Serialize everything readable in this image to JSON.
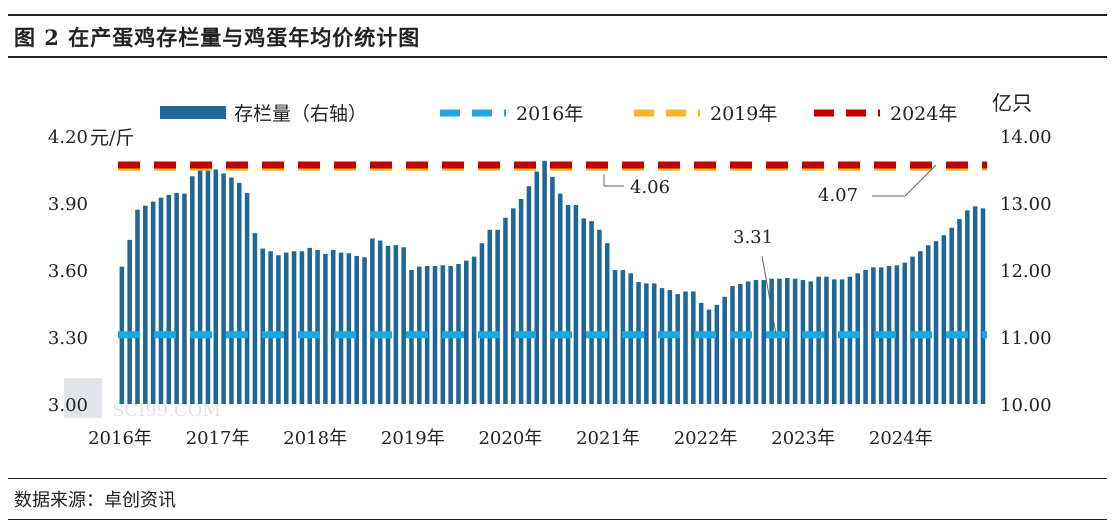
{
  "figure": {
    "title": "图 2 在产蛋鸡存栏量与鸡蛋年均价统计图",
    "source": "数据来源：卓创资讯",
    "watermark": "SCI99.COM"
  },
  "chart_data": {
    "type": "bar",
    "title": "",
    "x_tick_labels": [
      "2016年",
      "2017年",
      "2018年",
      "2019年",
      "2020年",
      "2021年",
      "2022年",
      "2023年",
      "2024年"
    ],
    "y_left": {
      "unit": "元/斤",
      "min": 3.0,
      "max": 4.2,
      "ticks": [
        "3.00",
        "3.30",
        "3.60",
        "3.90",
        "4.20"
      ]
    },
    "y_right": {
      "unit": "亿只",
      "min": 10.0,
      "max": 14.0,
      "ticks": [
        "10.00",
        "11.00",
        "12.00",
        "13.00",
        "14.00"
      ]
    },
    "legend": {
      "placement": "top",
      "items": [
        {
          "label": "存栏量（右轴）",
          "color": "#1f6796",
          "style": "bar"
        },
        {
          "label": "2016年",
          "color": "#1ba8e0",
          "style": "dash"
        },
        {
          "label": "2019年",
          "color": "#f4b81c",
          "style": "dash"
        },
        {
          "label": "2024年",
          "color": "#c00000",
          "style": "dash"
        }
      ]
    },
    "series": [
      {
        "name": "存栏量（右轴）",
        "axis": "right",
        "color": "#1f6796",
        "values": [
          12.05,
          12.45,
          12.9,
          12.96,
          13.02,
          13.08,
          13.12,
          13.15,
          13.14,
          13.4,
          13.5,
          13.53,
          13.5,
          13.44,
          13.38,
          13.3,
          13.15,
          12.55,
          12.32,
          12.28,
          12.22,
          12.26,
          12.28,
          12.28,
          12.33,
          12.3,
          12.24,
          12.3,
          12.26,
          12.25,
          12.21,
          12.19,
          12.47,
          12.44,
          12.36,
          12.37,
          12.34,
          12.0,
          12.05,
          12.06,
          12.06,
          12.07,
          12.06,
          12.09,
          12.14,
          12.2,
          12.4,
          12.6,
          12.6,
          12.78,
          12.92,
          13.06,
          13.25,
          13.47,
          13.63,
          13.39,
          13.14,
          12.97,
          12.97,
          12.77,
          12.73,
          12.6,
          12.4,
          12.0,
          12.0,
          11.95,
          11.82,
          11.8,
          11.8,
          11.73,
          11.7,
          11.64,
          11.68,
          11.68,
          11.51,
          11.41,
          11.48,
          11.6,
          11.76,
          11.79,
          11.83,
          11.85,
          11.85,
          11.87,
          11.87,
          11.88,
          11.87,
          11.85,
          11.83,
          11.9,
          11.9,
          11.86,
          11.86,
          11.9,
          11.95,
          12.0,
          12.04,
          12.04,
          12.06,
          12.07,
          12.11,
          12.2,
          12.28,
          12.37,
          12.43,
          12.52,
          12.63,
          12.76,
          12.89,
          12.95,
          12.92
        ]
      },
      {
        "name": "2016年",
        "axis": "left",
        "color": "#1ba8e0",
        "style": "dash",
        "values": [
          3.31
        ]
      },
      {
        "name": "2019年",
        "axis": "left",
        "color": "#f4b81c",
        "style": "dash",
        "values": [
          4.06
        ]
      },
      {
        "name": "2024年",
        "axis": "left",
        "color": "#c00000",
        "style": "dash",
        "values": [
          4.07
        ]
      }
    ],
    "annotations": [
      {
        "text": "4.06",
        "target": "2019年"
      },
      {
        "text": "4.07",
        "target": "2024年"
      },
      {
        "text": "3.31",
        "target": "2016年"
      }
    ],
    "grid": false
  }
}
